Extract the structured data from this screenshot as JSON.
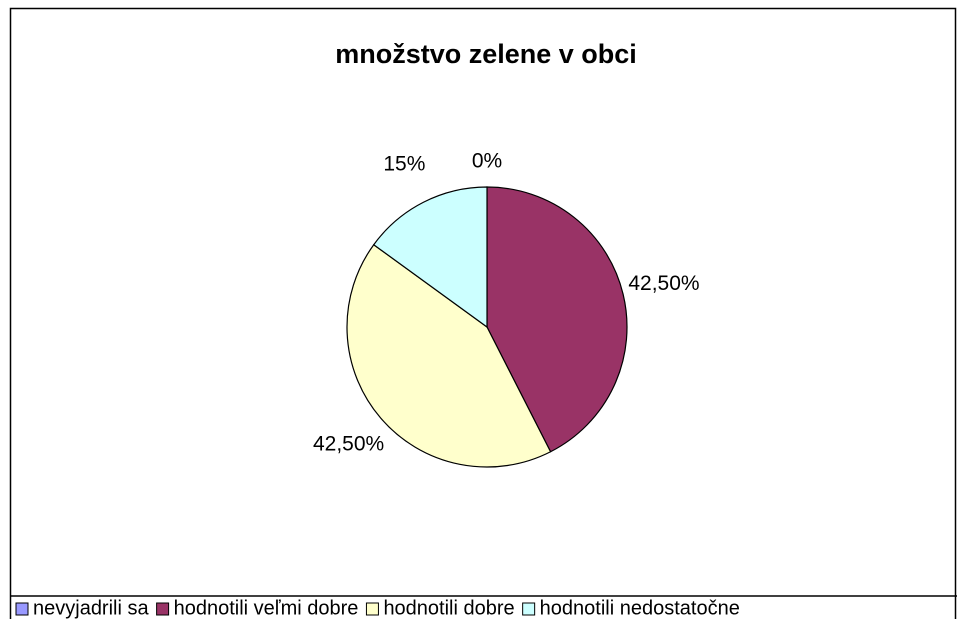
{
  "chart_data": {
    "type": "pie",
    "title": "množstvo zelene v obci",
    "categories": [
      "nevyjadrili sa",
      "hodnotili veľmi dobre",
      "hodnotili dobre",
      "hodnotili nedostatočne"
    ],
    "values": [
      0,
      42.5,
      42.5,
      15
    ],
    "value_labels": [
      "0%",
      "42,50%",
      "42,50%",
      "15%"
    ],
    "colors": [
      "#9999ff",
      "#993366",
      "#ffffcc",
      "#ccffff"
    ],
    "legend": "bottom"
  }
}
